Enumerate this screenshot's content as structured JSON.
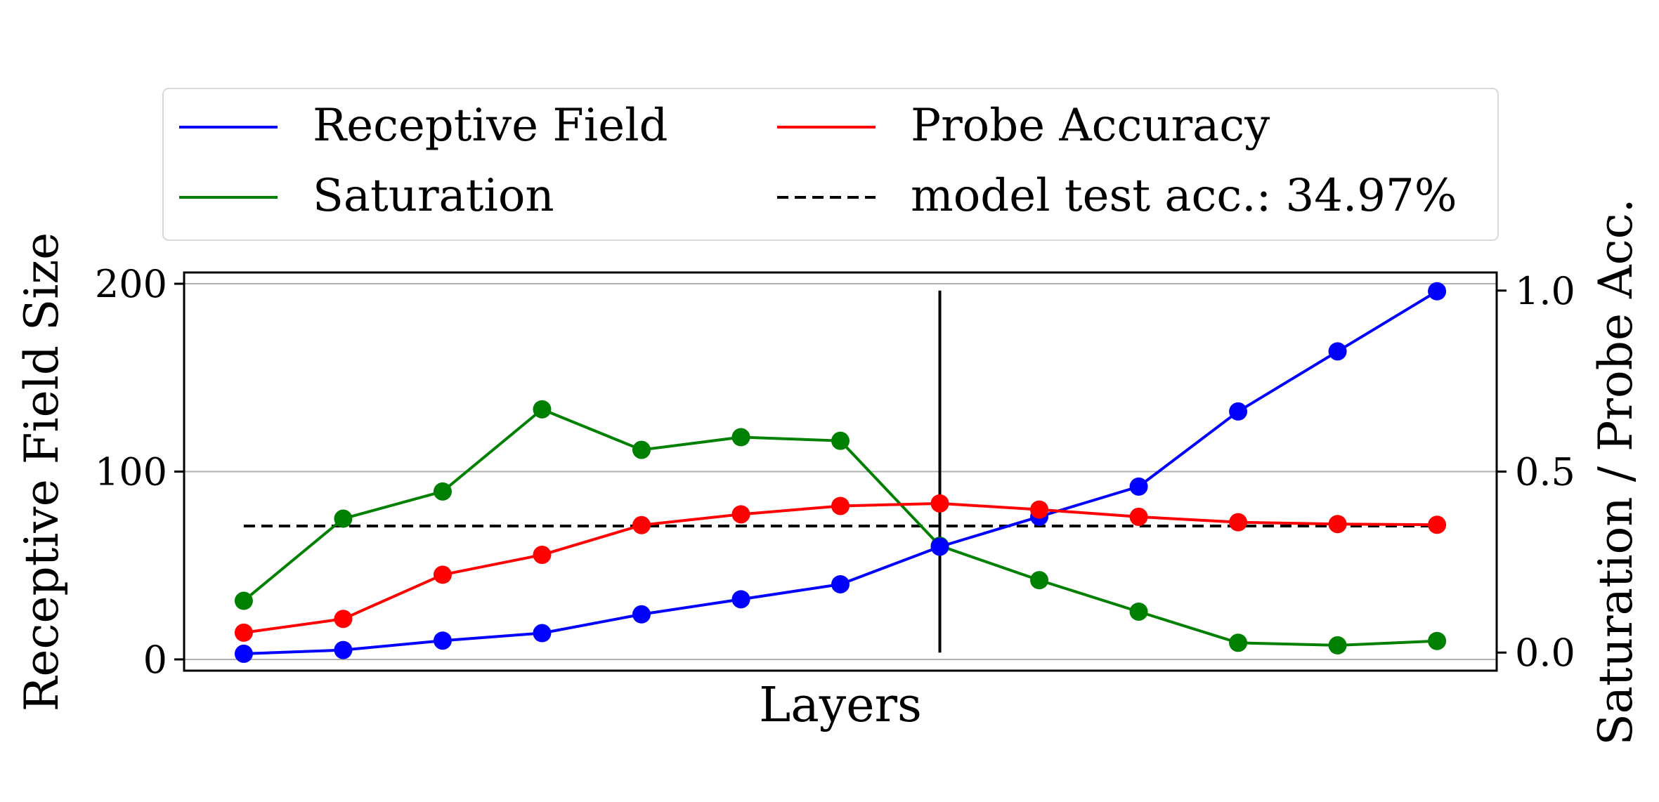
{
  "chart_data": {
    "type": "line",
    "xlabel": "Layers",
    "ylabel_left": "Receptive Field Size",
    "ylabel_right": "Saturation / Probe Acc.",
    "x": [
      1,
      2,
      3,
      4,
      5,
      6,
      7,
      8,
      9,
      10,
      11,
      12,
      13
    ],
    "ylim_left": [
      -6,
      206
    ],
    "yticks_left": [
      0,
      100,
      200
    ],
    "ylim_right": [
      -0.05,
      1.05
    ],
    "yticks_right": [
      "0.0",
      "0.5",
      "1.0"
    ],
    "grid": "horizontal",
    "legend_placement": "above plot",
    "series": [
      {
        "name": "Receptive Field",
        "axis": "left",
        "color": "#0000ff",
        "values": [
          3,
          5,
          10,
          14,
          24,
          32,
          40,
          60,
          76,
          92,
          132,
          164,
          196
        ]
      },
      {
        "name": "Probe Accuracy",
        "axis": "right",
        "color": "#ff0000",
        "values": [
          0.055,
          0.093,
          0.215,
          0.27,
          0.352,
          0.382,
          0.405,
          0.412,
          0.395,
          0.375,
          0.36,
          0.355,
          0.353
        ]
      },
      {
        "name": "Saturation",
        "axis": "right",
        "color": "#008000",
        "values": [
          0.143,
          0.37,
          0.445,
          0.672,
          0.56,
          0.595,
          0.585,
          0.295,
          0.2,
          0.113,
          0.027,
          0.02,
          0.032
        ]
      }
    ],
    "reference_line": {
      "name": "model test acc.: 34.97%",
      "axis": "right",
      "value": 0.3497,
      "style": "dashed",
      "color": "#000000"
    },
    "vertical_marker": {
      "x": 8,
      "color": "#000000"
    }
  }
}
